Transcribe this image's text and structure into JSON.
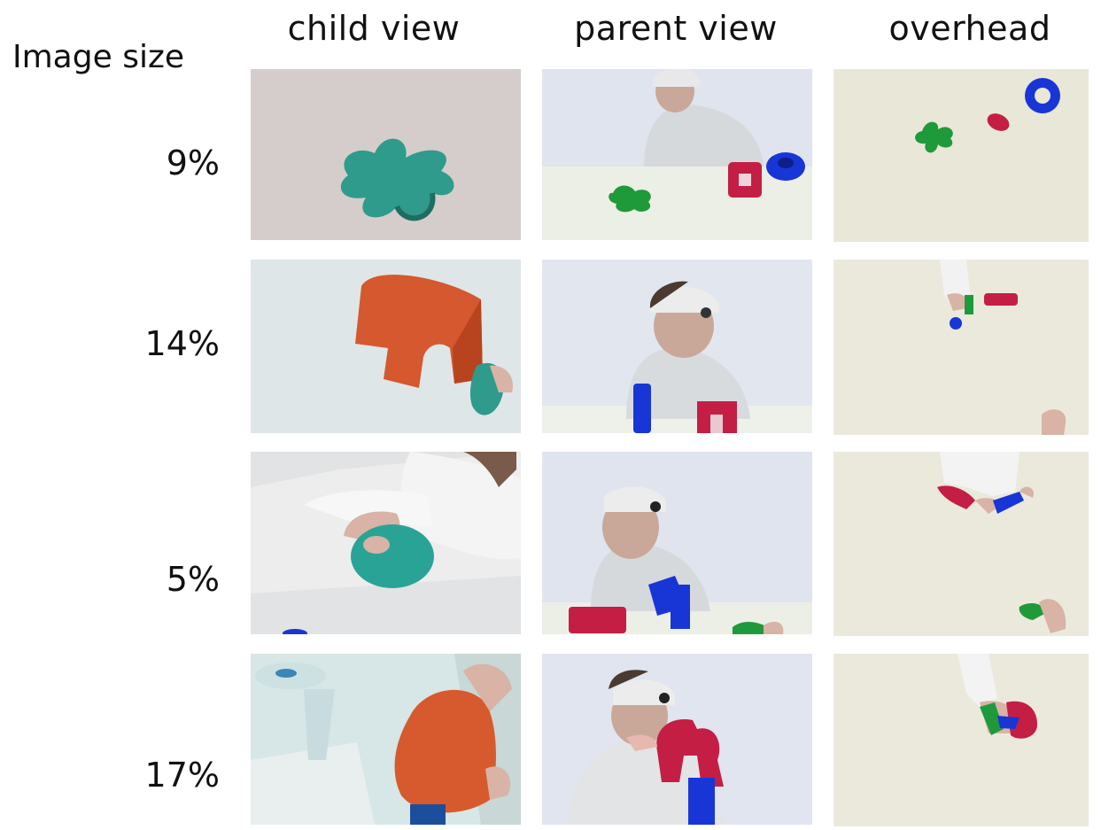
{
  "headers": {
    "child": "child view",
    "parent": "parent view",
    "overhead": "overhead"
  },
  "row_title": "Image size",
  "rows": [
    {
      "size": "9%"
    },
    {
      "size": "14%"
    },
    {
      "size": "5%"
    },
    {
      "size": "17%"
    }
  ]
}
